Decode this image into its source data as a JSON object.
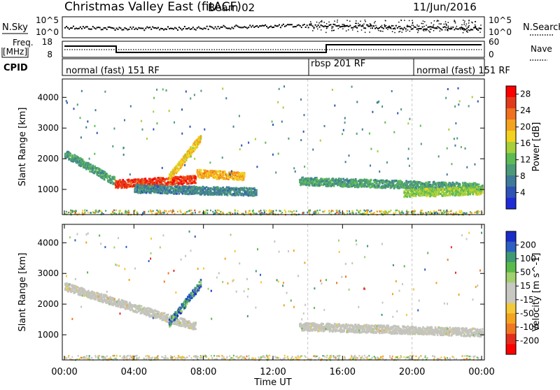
{
  "header": {
    "station": "Christmas Valley East (fitACF)",
    "beam": "Beam 02",
    "date": "11/Jun/2016"
  },
  "noise_panel": {
    "left_label": "N.Sky",
    "left_ticks": [
      "10^5",
      "10^0"
    ],
    "right_label": "N.Search",
    "right_ticks": [
      "10^5",
      "10^0"
    ]
  },
  "freq_panel": {
    "left_label_1": "Freq.",
    "left_label_2": "[MHz]",
    "left_ticks": [
      "18",
      "8"
    ],
    "right_label": "Nave",
    "right_ticks": [
      "60",
      "0"
    ]
  },
  "cpid_panel": {
    "label": "CPID",
    "segments": [
      {
        "text": "normal (fast) 151 RF",
        "start_hour": 0,
        "end_hour": 14
      },
      {
        "text": "rbsp 201 RF",
        "start_hour": 14,
        "end_hour": 20
      },
      {
        "text": "normal (fast) 151 RF",
        "start_hour": 20,
        "end_hour": 24
      }
    ]
  },
  "colors": {
    "power_scale": [
      "#1f2bd6",
      "#2e52b6",
      "#3f7a9a",
      "#4c9a78",
      "#5cbb55",
      "#a6cf3a",
      "#f2d21d",
      "#f4a31f",
      "#f0701f",
      "#e23b1c",
      "#ff0000"
    ],
    "velocity_scale": [
      "#1a2cc7",
      "#2e5fc2",
      "#3f9a74",
      "#5aba4a",
      "#a2d06d",
      "#c8c8c2",
      "#c8c8c2",
      "#f3c93a",
      "#f3a31d",
      "#f07722",
      "#e42d1e",
      "#ff0000"
    ],
    "ground_scatter": "#c4c4bc"
  },
  "chart_data": [
    {
      "type": "heatmap",
      "title": "",
      "xlabel": "Time UT",
      "ylabel": "Slant Range [km]",
      "x_ticks": [
        "00:00",
        "04:00",
        "08:00",
        "12:00",
        "16:00",
        "20:00",
        "00:00"
      ],
      "xlim_hours": [
        0,
        24
      ],
      "ylim": [
        180,
        4600
      ],
      "y_ticks": [
        1000,
        2000,
        3000,
        4000
      ],
      "colorbar": {
        "label": "Power [dB]",
        "ticks": [
          4,
          8,
          12,
          16,
          20,
          24,
          28
        ],
        "range": [
          0,
          30
        ]
      },
      "features": [
        {
          "description_value": "early bend",
          "start_hour": 0.0,
          "end_hour": 3.0,
          "start_range": 2200,
          "end_range": 1250,
          "power": 10
        },
        {
          "description_value": "main band",
          "start_hour": 2.9,
          "end_hour": 7.5,
          "start_range": 1200,
          "end_range": 1350,
          "power": 26
        },
        {
          "description_value": "rising arc",
          "start_hour": 6.0,
          "end_hour": 7.8,
          "start_range": 1400,
          "end_range": 2700,
          "power": 18
        },
        {
          "description_value": "upper layer",
          "start_hour": 7.6,
          "end_hour": 10.3,
          "start_range": 1550,
          "end_range": 1450,
          "power": 20
        },
        {
          "description_value": "lower layer",
          "start_hour": 4.0,
          "end_hour": 11.0,
          "start_range": 1050,
          "end_range": 950,
          "power": 8
        },
        {
          "description_value": "evening band",
          "start_hour": 13.5,
          "end_hour": 24.0,
          "start_range": 1300,
          "end_range": 1100,
          "power": 10
        },
        {
          "description_value": "late band",
          "start_hour": 19.5,
          "end_hour": 24.0,
          "start_range": 900,
          "end_range": 1000,
          "power": 14
        }
      ]
    },
    {
      "type": "heatmap",
      "title": "",
      "xlabel": "Time UT",
      "ylabel": "Slant Range [km]",
      "x_ticks": [
        "00:00",
        "04:00",
        "08:00",
        "12:00",
        "16:00",
        "20:00",
        "00:00"
      ],
      "xlim_hours": [
        0,
        24
      ],
      "ylim": [
        180,
        4600
      ],
      "y_ticks": [
        1000,
        2000,
        3000,
        4000
      ],
      "colorbar": {
        "label": "Velocity [m s^-1]",
        "ticks": [
          200,
          100,
          50,
          15,
          -15,
          -50,
          -100,
          -200
        ],
        "range": [
          -250,
          250
        ]
      },
      "ground_scatter_color": "gray",
      "features": [
        {
          "description_value": "ground scatter",
          "start_hour": 0.0,
          "end_hour": 7.5,
          "start_range": 2600,
          "end_range": 1300,
          "velocity": 0
        },
        {
          "description_value": "rising arc",
          "start_hour": 6.0,
          "end_hour": 7.8,
          "start_range": 1400,
          "end_range": 2700,
          "velocity": 150
        },
        {
          "description_value": "evening layer",
          "start_hour": 13.5,
          "end_hour": 24.0,
          "start_range": 1300,
          "end_range": 1100,
          "velocity": 0
        }
      ]
    }
  ]
}
